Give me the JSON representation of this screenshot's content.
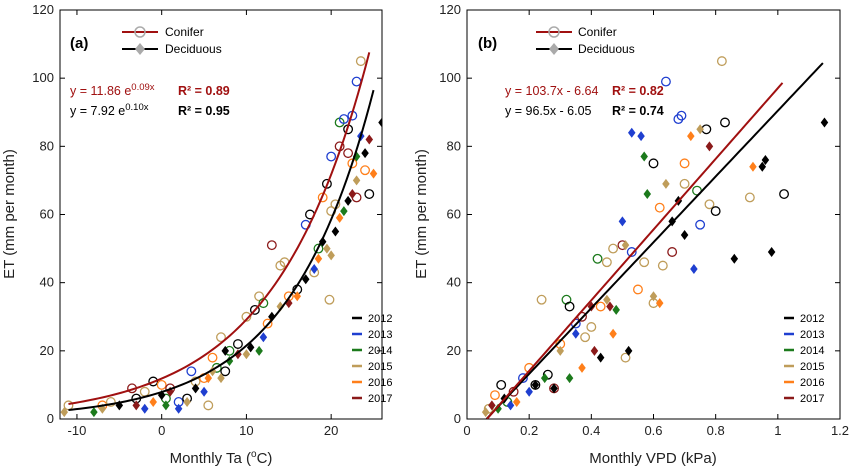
{
  "colors": {
    "2012": "#000000",
    "2013": "#1f3fd0",
    "2014": "#1c7a1c",
    "2015": "#bf9d5a",
    "2016": "#ff7f1a",
    "2017": "#8b1a1a",
    "conifer_line": "#a01010",
    "deciduous_line": "#000000",
    "legend_marker": "#aaaaaa"
  },
  "chart_data": [
    {
      "type": "scatter",
      "panel_label": "(a)",
      "xlabel_main": "Monthly Ta (",
      "xlabel_sup": "o",
      "xlabel_end": "C)",
      "ylabel": "ET (mm per month)",
      "xlim": [
        -12,
        26
      ],
      "ylim": [
        0,
        120
      ],
      "xticks": [
        -10,
        0,
        10,
        20
      ],
      "xtick_labels": [
        "-10",
        "0",
        "10",
        "20"
      ],
      "yticks": [
        0,
        20,
        40,
        60,
        80,
        100,
        120
      ],
      "ytick_labels": [
        "0",
        "20",
        "40",
        "60",
        "80",
        "100",
        "120"
      ],
      "legend": {
        "conifer": "Conifer",
        "deciduous": "Deciduous"
      },
      "year_legend": [
        "2012",
        "2013",
        "2014",
        "2015",
        "2016",
        "2017"
      ],
      "equations": {
        "conifer": {
          "base": "y = 11.86 e",
          "exp": "0.09x",
          "r2": "R² = 0.89"
        },
        "deciduous": {
          "base": "y = 7.92 e",
          "exp": "0.10x",
          "r2": "R² = 0.95"
        }
      },
      "fits": {
        "conifer": {
          "model": "exp",
          "a": 11.86,
          "b": 0.09,
          "x_range": [
            -11,
            24.5
          ]
        },
        "deciduous": {
          "model": "exp",
          "a": 7.92,
          "b": 0.1,
          "x_range": [
            -11,
            25
          ]
        }
      },
      "conifer_points": [
        [
          -11,
          4,
          "2015"
        ],
        [
          -7,
          4,
          "2016"
        ],
        [
          -6,
          5,
          "2015"
        ],
        [
          -3.5,
          9,
          "2017"
        ],
        [
          -3,
          6,
          "2012"
        ],
        [
          -2,
          8,
          "2015"
        ],
        [
          -1,
          11,
          "2012"
        ],
        [
          0,
          10,
          "2016"
        ],
        [
          0.5,
          6,
          "2014"
        ],
        [
          1,
          9,
          "2017"
        ],
        [
          2,
          5,
          "2013"
        ],
        [
          3,
          6,
          "2012"
        ],
        [
          3.5,
          14,
          "2013"
        ],
        [
          4,
          11,
          "2015"
        ],
        [
          5,
          12,
          "2016"
        ],
        [
          5.5,
          4,
          "2015"
        ],
        [
          6,
          18,
          "2016"
        ],
        [
          6.5,
          15,
          "2014"
        ],
        [
          7,
          24,
          "2015"
        ],
        [
          7.5,
          14,
          "2012"
        ],
        [
          8,
          20,
          "2014"
        ],
        [
          9,
          22,
          "2012"
        ],
        [
          10,
          30,
          "2015"
        ],
        [
          11,
          32,
          "2012"
        ],
        [
          11.5,
          36,
          "2015"
        ],
        [
          12,
          34,
          "2014"
        ],
        [
          12.5,
          28,
          "2016"
        ],
        [
          13,
          51,
          "2017"
        ],
        [
          14,
          45,
          "2015"
        ],
        [
          14.5,
          46,
          "2015"
        ],
        [
          15,
          36,
          "2016"
        ],
        [
          16,
          38,
          "2012"
        ],
        [
          17,
          57,
          "2013"
        ],
        [
          17.5,
          60,
          "2012"
        ],
        [
          18,
          43,
          "2015"
        ],
        [
          18.5,
          50,
          "2014"
        ],
        [
          19,
          65,
          "2016"
        ],
        [
          19.5,
          69,
          "2012"
        ],
        [
          19.8,
          35,
          "2015"
        ],
        [
          20,
          61,
          "2015"
        ],
        [
          20,
          77,
          "2013"
        ],
        [
          20.5,
          63,
          "2015"
        ],
        [
          21,
          80,
          "2017"
        ],
        [
          21,
          87,
          "2014"
        ],
        [
          21.5,
          88,
          "2013"
        ],
        [
          22,
          85,
          "2012"
        ],
        [
          22,
          78,
          "2017"
        ],
        [
          22.5,
          89,
          "2013"
        ],
        [
          22.5,
          75,
          "2016"
        ],
        [
          23,
          65,
          "2017"
        ],
        [
          23,
          99,
          "2013"
        ],
        [
          23.5,
          105,
          "2015"
        ],
        [
          24,
          73,
          "2016"
        ],
        [
          24.5,
          66,
          "2012"
        ]
      ],
      "deciduous_points": [
        [
          -11.5,
          2,
          "2015"
        ],
        [
          -8,
          2,
          "2014"
        ],
        [
          -7,
          3,
          "2015"
        ],
        [
          -5,
          4,
          "2012"
        ],
        [
          -3,
          4,
          "2017"
        ],
        [
          -2,
          3,
          "2013"
        ],
        [
          -1,
          5,
          "2016"
        ],
        [
          0,
          7,
          "2012"
        ],
        [
          0.5,
          4,
          "2014"
        ],
        [
          1,
          8,
          "2017"
        ],
        [
          2,
          3,
          "2013"
        ],
        [
          3,
          5,
          "2015"
        ],
        [
          4,
          9,
          "2012"
        ],
        [
          5,
          8,
          "2013"
        ],
        [
          5.5,
          12,
          "2016"
        ],
        [
          6,
          14,
          "2015"
        ],
        [
          7,
          12,
          "2015"
        ],
        [
          7.5,
          20,
          "2012"
        ],
        [
          8,
          17,
          "2014"
        ],
        [
          9,
          19,
          "2017"
        ],
        [
          10,
          19,
          "2015"
        ],
        [
          10.5,
          21,
          "2012"
        ],
        [
          11.5,
          20,
          "2014"
        ],
        [
          12,
          24,
          "2013"
        ],
        [
          13,
          30,
          "2012"
        ],
        [
          14,
          33,
          "2015"
        ],
        [
          15,
          34,
          "2017"
        ],
        [
          16,
          36,
          "2016"
        ],
        [
          17,
          41,
          "2012"
        ],
        [
          18,
          44,
          "2013"
        ],
        [
          18.5,
          47,
          "2016"
        ],
        [
          19,
          52,
          "2012"
        ],
        [
          19.5,
          50,
          "2015"
        ],
        [
          20,
          48,
          "2015"
        ],
        [
          20.5,
          55,
          "2012"
        ],
        [
          21,
          59,
          "2016"
        ],
        [
          21.5,
          61,
          "2014"
        ],
        [
          22,
          64,
          "2012"
        ],
        [
          22.5,
          66,
          "2017"
        ],
        [
          23,
          70,
          "2015"
        ],
        [
          23,
          77,
          "2014"
        ],
        [
          23.5,
          83,
          "2013"
        ],
        [
          24,
          78,
          "2012"
        ],
        [
          24.5,
          82,
          "2017"
        ],
        [
          25,
          72,
          "2016"
        ],
        [
          26,
          87,
          "2012"
        ]
      ]
    },
    {
      "type": "scatter",
      "panel_label": "(b)",
      "xlabel": "Monthly VPD (kPa)",
      "ylabel": "ET (mm per month)",
      "xlim": [
        0,
        1.2
      ],
      "ylim": [
        0,
        120
      ],
      "xticks": [
        0,
        0.2,
        0.4,
        0.6,
        0.8,
        1,
        1.2
      ],
      "xtick_labels": [
        "0",
        "0.2",
        "0.4",
        "0.6",
        "0.8",
        "1",
        "1.2"
      ],
      "yticks": [
        0,
        20,
        40,
        60,
        80,
        100,
        120
      ],
      "ytick_labels": [
        "0",
        "20",
        "40",
        "60",
        "80",
        "100",
        "120"
      ],
      "legend": {
        "conifer": "Conifer",
        "deciduous": "Deciduous"
      },
      "year_legend": [
        "2012",
        "2013",
        "2014",
        "2015",
        "2016",
        "2017"
      ],
      "equations": {
        "conifer": {
          "base": "y = 103.7x - 6.64",
          "exp": "",
          "r2": "R² = 0.82"
        },
        "deciduous": {
          "base": "y = 96.5x - 6.05",
          "exp": "",
          "r2": "R² = 0.74"
        }
      },
      "fits": {
        "conifer": {
          "model": "linear",
          "a": 103.7,
          "b": -6.64,
          "x_range": [
            0.064,
            1.015
          ]
        },
        "deciduous": {
          "model": "linear",
          "a": 96.5,
          "b": -6.05,
          "x_range": [
            0.063,
            1.145
          ]
        }
      },
      "conifer_points": [
        [
          0.07,
          3,
          "2015"
        ],
        [
          0.09,
          7,
          "2016"
        ],
        [
          0.11,
          10,
          "2012"
        ],
        [
          0.13,
          5,
          "2014"
        ],
        [
          0.15,
          8,
          "2017"
        ],
        [
          0.18,
          12,
          "2013"
        ],
        [
          0.2,
          15,
          "2016"
        ],
        [
          0.22,
          10,
          "2012"
        ],
        [
          0.24,
          35,
          "2015"
        ],
        [
          0.26,
          13,
          "2012"
        ],
        [
          0.28,
          9,
          "2017"
        ],
        [
          0.3,
          22,
          "2016"
        ],
        [
          0.32,
          35,
          "2014"
        ],
        [
          0.33,
          33,
          "2012"
        ],
        [
          0.35,
          28,
          "2013"
        ],
        [
          0.37,
          30,
          "2017"
        ],
        [
          0.38,
          24,
          "2015"
        ],
        [
          0.4,
          27,
          "2015"
        ],
        [
          0.42,
          47,
          "2014"
        ],
        [
          0.43,
          33,
          "2016"
        ],
        [
          0.45,
          46,
          "2015"
        ],
        [
          0.47,
          50,
          "2015"
        ],
        [
          0.5,
          51,
          "2017"
        ],
        [
          0.51,
          18,
          "2015"
        ],
        [
          0.53,
          49,
          "2013"
        ],
        [
          0.55,
          38,
          "2016"
        ],
        [
          0.57,
          46,
          "2015"
        ],
        [
          0.6,
          75,
          "2012"
        ],
        [
          0.6,
          34,
          "2015"
        ],
        [
          0.62,
          62,
          "2016"
        ],
        [
          0.63,
          45,
          "2015"
        ],
        [
          0.64,
          99,
          "2013"
        ],
        [
          0.66,
          49,
          "2017"
        ],
        [
          0.68,
          88,
          "2013"
        ],
        [
          0.69,
          89,
          "2013"
        ],
        [
          0.7,
          75,
          "2016"
        ],
        [
          0.7,
          69,
          "2015"
        ],
        [
          0.74,
          67,
          "2014"
        ],
        [
          0.75,
          57,
          "2013"
        ],
        [
          0.77,
          85,
          "2012"
        ],
        [
          0.78,
          63,
          "2015"
        ],
        [
          0.8,
          61,
          "2012"
        ],
        [
          0.82,
          105,
          "2015"
        ],
        [
          0.83,
          87,
          "2012"
        ],
        [
          0.91,
          65,
          "2015"
        ],
        [
          1.02,
          66,
          "2012"
        ]
      ],
      "deciduous_points": [
        [
          0.06,
          2,
          "2015"
        ],
        [
          0.08,
          4,
          "2017"
        ],
        [
          0.1,
          3,
          "2014"
        ],
        [
          0.12,
          6,
          "2012"
        ],
        [
          0.14,
          4,
          "2013"
        ],
        [
          0.16,
          5,
          "2016"
        ],
        [
          0.2,
          8,
          "2013"
        ],
        [
          0.22,
          10,
          "2012"
        ],
        [
          0.25,
          12,
          "2014"
        ],
        [
          0.28,
          9,
          "2012"
        ],
        [
          0.3,
          20,
          "2015"
        ],
        [
          0.33,
          12,
          "2014"
        ],
        [
          0.35,
          25,
          "2013"
        ],
        [
          0.37,
          15,
          "2016"
        ],
        [
          0.4,
          33,
          "2017"
        ],
        [
          0.41,
          20,
          "2017"
        ],
        [
          0.43,
          18,
          "2012"
        ],
        [
          0.45,
          35,
          "2015"
        ],
        [
          0.46,
          33,
          "2017"
        ],
        [
          0.47,
          25,
          "2016"
        ],
        [
          0.48,
          32,
          "2014"
        ],
        [
          0.5,
          58,
          "2013"
        ],
        [
          0.51,
          51,
          "2015"
        ],
        [
          0.52,
          20,
          "2012"
        ],
        [
          0.53,
          84,
          "2013"
        ],
        [
          0.56,
          83,
          "2013"
        ],
        [
          0.57,
          77,
          "2014"
        ],
        [
          0.58,
          66,
          "2014"
        ],
        [
          0.6,
          36,
          "2015"
        ],
        [
          0.62,
          34,
          "2016"
        ],
        [
          0.64,
          69,
          "2015"
        ],
        [
          0.66,
          58,
          "2012"
        ],
        [
          0.68,
          64,
          "2012"
        ],
        [
          0.7,
          54,
          "2012"
        ],
        [
          0.72,
          83,
          "2016"
        ],
        [
          0.73,
          44,
          "2013"
        ],
        [
          0.75,
          85,
          "2015"
        ],
        [
          0.78,
          80,
          "2017"
        ],
        [
          0.86,
          47,
          "2012"
        ],
        [
          0.92,
          74,
          "2016"
        ],
        [
          0.95,
          74,
          "2012"
        ],
        [
          0.96,
          76,
          "2012"
        ],
        [
          0.98,
          49,
          "2012"
        ],
        [
          1.15,
          87,
          "2012"
        ]
      ]
    }
  ]
}
